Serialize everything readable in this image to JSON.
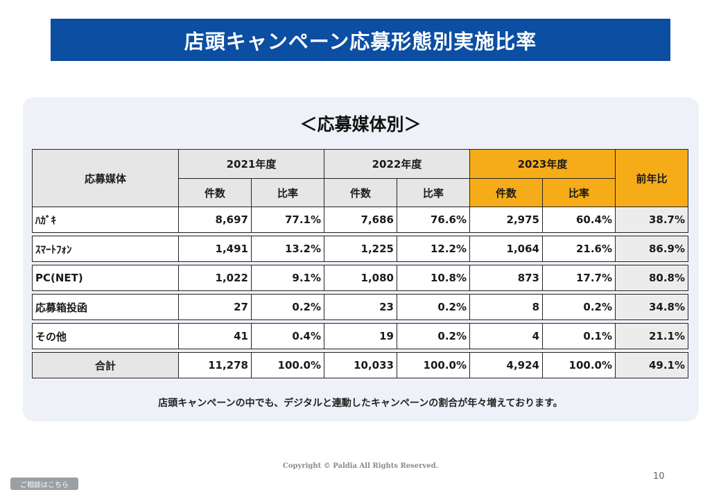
{
  "title": "店頭キャンペーン応募形態別実施比率",
  "subtitle": "＜応募媒体別＞",
  "table": {
    "media_header": "応募媒体",
    "years": [
      "2021年度",
      "2022年度",
      "2023年度"
    ],
    "count_label": "件数",
    "ratio_label": "比率",
    "yoy_header": "前年比",
    "rows": [
      {
        "label": "ﾊｶﾞｷ",
        "c2021": "8,697",
        "r2021": "77.1%",
        "c2022": "7,686",
        "r2022": "76.6%",
        "c2023": "2,975",
        "r2023": "60.4%",
        "yoy": "38.7%"
      },
      {
        "label": "ｽﾏｰﾄﾌｫﾝ",
        "c2021": "1,491",
        "r2021": "13.2%",
        "c2022": "1,225",
        "r2022": "12.2%",
        "c2023": "1,064",
        "r2023": "21.6%",
        "yoy": "86.9%"
      },
      {
        "label": "PC(NET)",
        "c2021": "1,022",
        "r2021": "9.1%",
        "c2022": "1,080",
        "r2022": "10.8%",
        "c2023": "873",
        "r2023": "17.7%",
        "yoy": "80.8%"
      },
      {
        "label": "応募箱投函",
        "c2021": "27",
        "r2021": "0.2%",
        "c2022": "23",
        "r2022": "0.2%",
        "c2023": "8",
        "r2023": "0.2%",
        "yoy": "34.8%"
      },
      {
        "label": "その他",
        "c2021": "41",
        "r2021": "0.4%",
        "c2022": "19",
        "r2022": "0.2%",
        "c2023": "4",
        "r2023": "0.1%",
        "yoy": "21.1%"
      }
    ],
    "total": {
      "label": "合計",
      "c2021": "11,278",
      "r2021": "100.0%",
      "c2022": "10,033",
      "r2022": "100.0%",
      "c2023": "4,924",
      "r2023": "100.0%",
      "yoy": "49.1%"
    }
  },
  "note": "店頭キャンペーンの中でも、デジタルと連動したキャンペーンの割合が年々増えております。",
  "copyright": "Copyright © Paldia All Rights Reserved.",
  "page_number": "10",
  "consult_button": "ご相談はこちら",
  "colors": {
    "title_bar": "#0b4ea2",
    "highlight_year": "#f6ac19",
    "panel": "#eef2f8"
  }
}
